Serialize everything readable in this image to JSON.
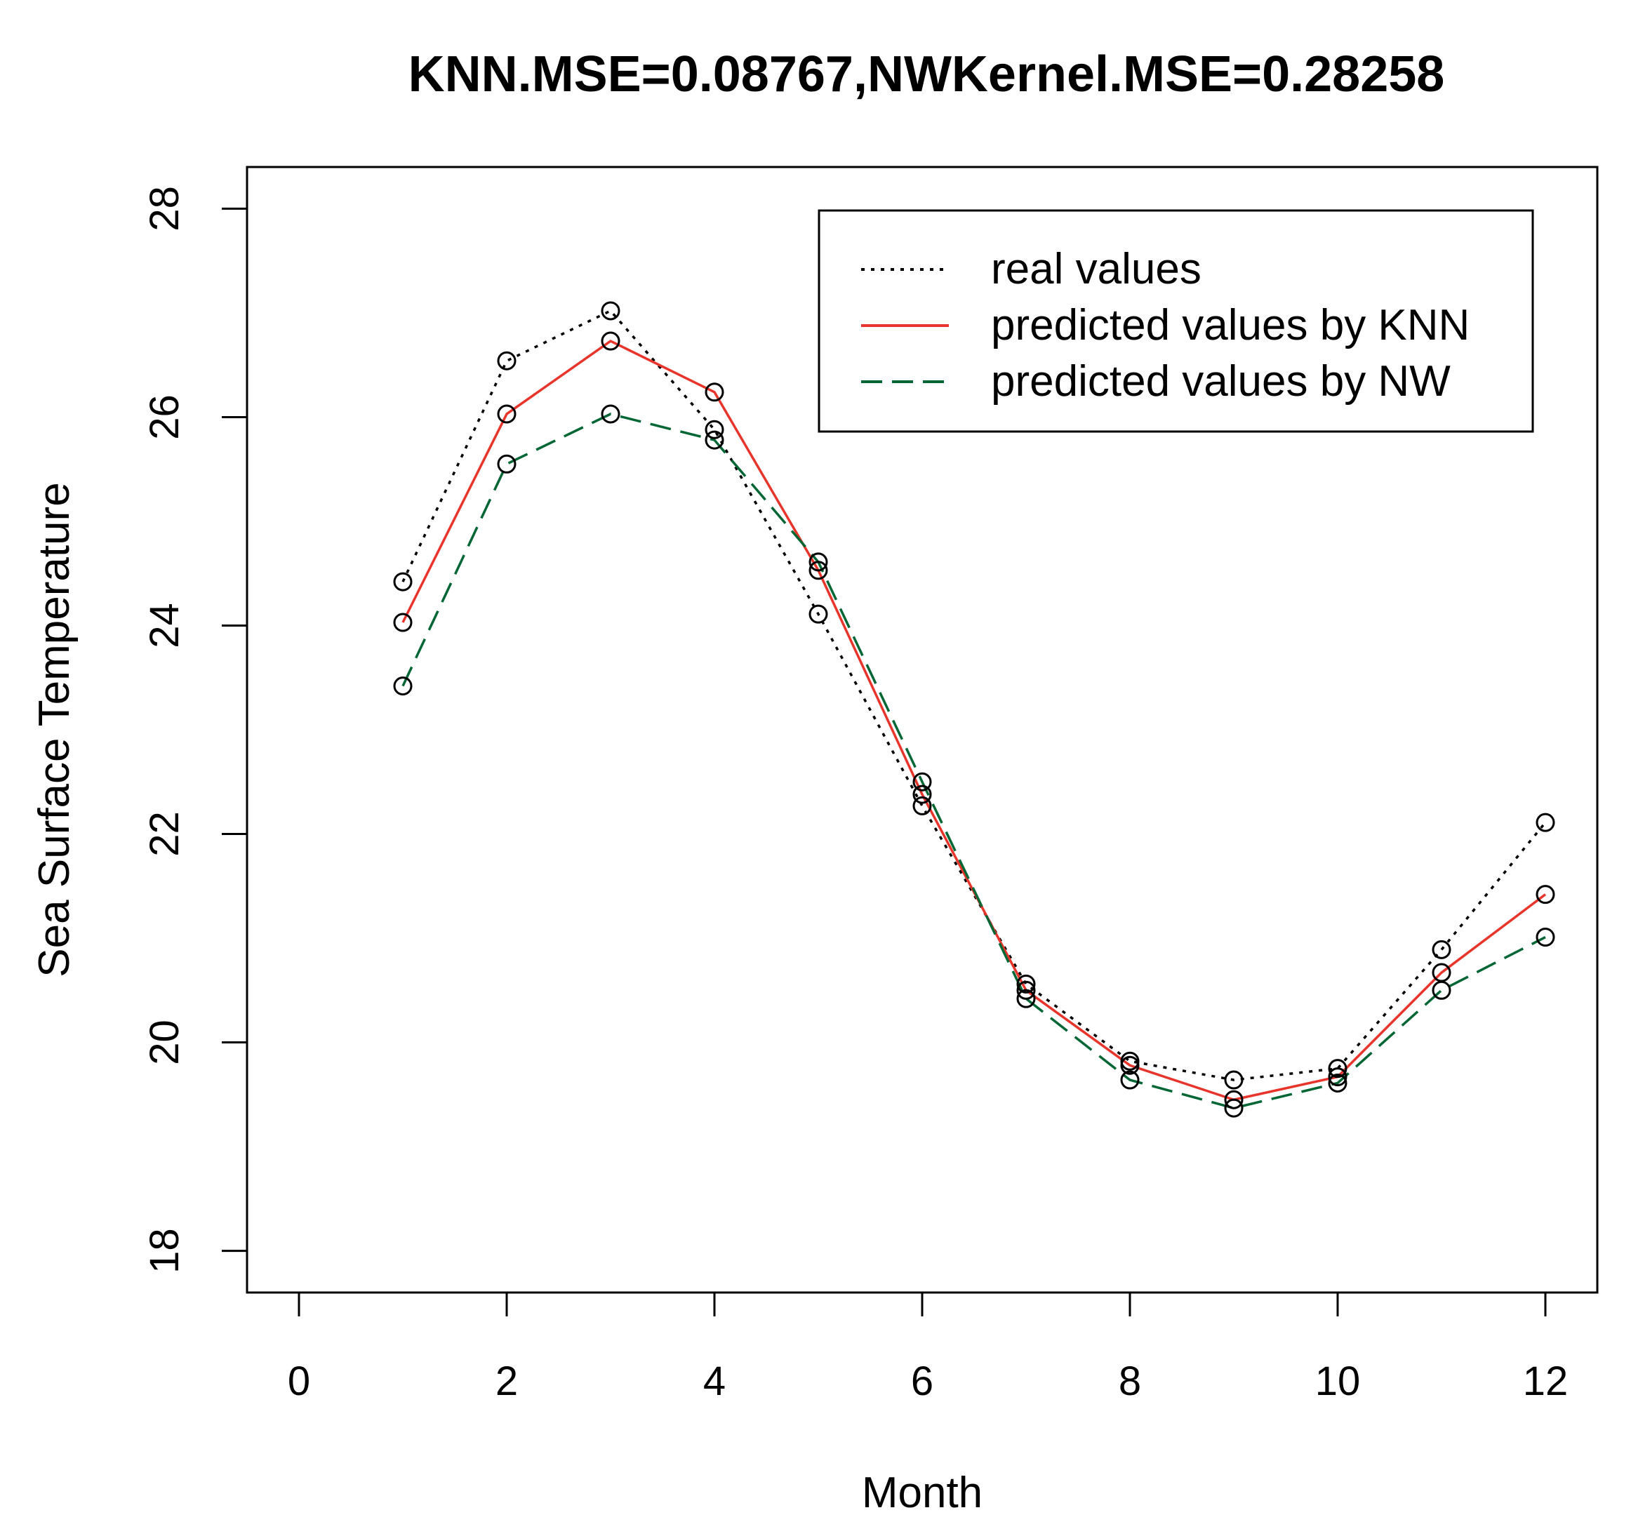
{
  "chart_data": {
    "type": "line",
    "title": "KNN.MSE=0.08767,NWKernel.MSE=0.28258",
    "xlabel": "Month",
    "ylabel": "Sea Surface Temperature",
    "xlim": [
      -0.5,
      12.5
    ],
    "ylim": [
      17.6,
      28.4
    ],
    "x_ticks": [
      0,
      2,
      4,
      6,
      8,
      10,
      12
    ],
    "y_ticks": [
      18,
      20,
      22,
      24,
      26,
      28
    ],
    "grid": false,
    "legend_position": "top-right",
    "x": [
      1,
      2,
      3,
      4,
      5,
      6,
      7,
      8,
      9,
      10,
      11,
      12
    ],
    "series": [
      {
        "name": "real values",
        "color": "#000000",
        "dash": "dotted",
        "values": [
          24.42,
          26.54,
          27.02,
          25.88,
          24.11,
          22.27,
          20.56,
          19.82,
          19.64,
          19.75,
          20.89,
          22.11
        ]
      },
      {
        "name": "predicted values by KNN",
        "color": "#e8352b",
        "dash": "solid",
        "values": [
          24.03,
          26.03,
          26.73,
          26.24,
          24.53,
          22.38,
          20.5,
          19.78,
          19.45,
          19.67,
          20.67,
          21.42
        ]
      },
      {
        "name": "predicted values by NW",
        "color": "#006633",
        "dash": "dashed",
        "values": [
          23.42,
          25.55,
          26.03,
          25.78,
          24.61,
          22.5,
          20.42,
          19.64,
          19.37,
          19.61,
          20.5,
          21.01
        ]
      }
    ]
  }
}
